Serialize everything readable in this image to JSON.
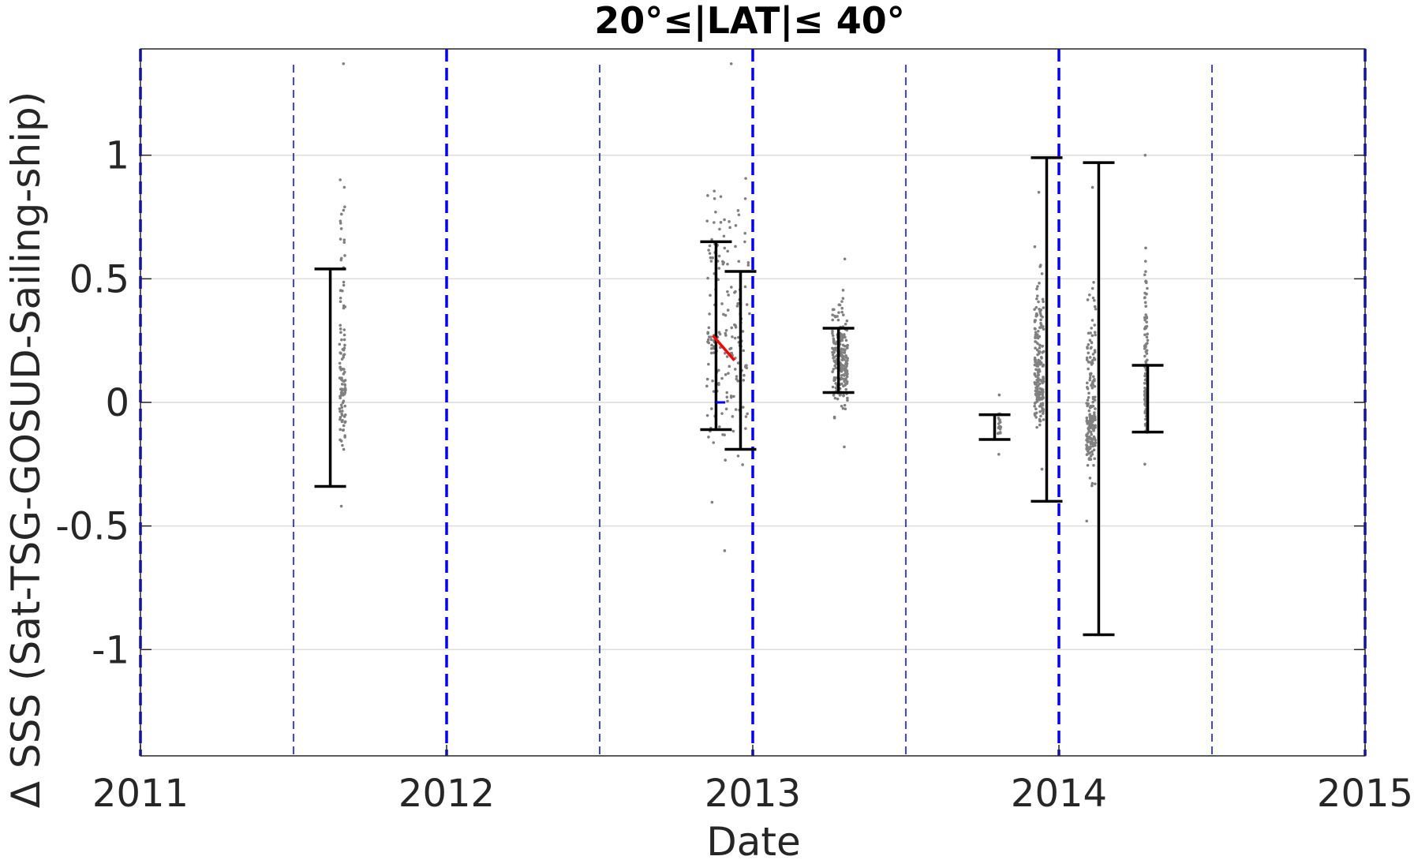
{
  "chart_data": {
    "type": "scatter",
    "title": "20°≤|LAT|≤ 40°",
    "xlabel": "Date",
    "ylabel": "Δ SSS (Sat-TSG-GOSUD-Sailing-ship)",
    "x_ticks": [
      "2011",
      "2012",
      "2013",
      "2014",
      "2015"
    ],
    "y_ticks": [
      "-1",
      "-0.5",
      "0",
      "0.5",
      "1"
    ],
    "xlim": [
      2011.0,
      2015.0
    ],
    "ylim": [
      -1.43,
      1.43
    ],
    "grid": "horizontal",
    "year_lines": [
      2011.0,
      2012.0,
      2013.0,
      2014.0,
      2015.0
    ],
    "half_year_lines": [
      2011.5,
      2012.5,
      2013.5,
      2014.5
    ],
    "colors": {
      "scatter": "#808080",
      "errorbar": "#000000",
      "year_line": "#0000ff",
      "trend": "#ff0000",
      "zero_mark": "#0000ff"
    },
    "error_bars": [
      {
        "x": 2011.62,
        "low": -0.34,
        "high": 0.54
      },
      {
        "x": 2012.88,
        "low": -0.11,
        "high": 0.65
      },
      {
        "x": 2012.96,
        "low": -0.19,
        "high": 0.53
      },
      {
        "x": 2013.28,
        "low": 0.04,
        "high": 0.3
      },
      {
        "x": 2013.79,
        "low": -0.15,
        "high": -0.05
      },
      {
        "x": 2013.96,
        "low": -0.4,
        "high": 0.99
      },
      {
        "x": 2014.13,
        "low": -0.94,
        "high": 0.97
      },
      {
        "x": 2014.29,
        "low": -0.12,
        "high": 0.15
      }
    ],
    "scatter_clusters": [
      {
        "x_start": 2011.65,
        "x_end": 2011.67,
        "y_min": -0.42,
        "y_max": 1.37,
        "y_center": 0.1,
        "count": 110
      },
      {
        "x_start": 2012.85,
        "x_end": 2012.99,
        "y_min": -0.6,
        "y_max": 1.37,
        "y_center": 0.25,
        "count": 180
      },
      {
        "x_start": 2013.26,
        "x_end": 2013.31,
        "y_min": -0.18,
        "y_max": 0.58,
        "y_center": 0.17,
        "count": 220
      },
      {
        "x_start": 2013.8,
        "x_end": 2013.81,
        "y_min": -0.21,
        "y_max": 0.03,
        "y_center": -0.1,
        "count": 25
      },
      {
        "x_start": 2013.92,
        "x_end": 2013.95,
        "y_min": -0.27,
        "y_max": 0.85,
        "y_center": 0.1,
        "count": 200
      },
      {
        "x_start": 2014.09,
        "x_end": 2014.12,
        "y_min": -0.48,
        "y_max": 0.87,
        "y_center": -0.05,
        "count": 200
      },
      {
        "x_start": 2014.28,
        "x_end": 2014.29,
        "y_min": -0.25,
        "y_max": 1.0,
        "y_center": 0.05,
        "count": 140
      }
    ],
    "trend_segment": {
      "x": [
        2012.87,
        2012.94
      ],
      "y": [
        0.27,
        0.17
      ]
    },
    "zero_marker": {
      "x": [
        2012.88,
        2012.91
      ],
      "y": [
        0.0,
        0.0
      ]
    }
  }
}
